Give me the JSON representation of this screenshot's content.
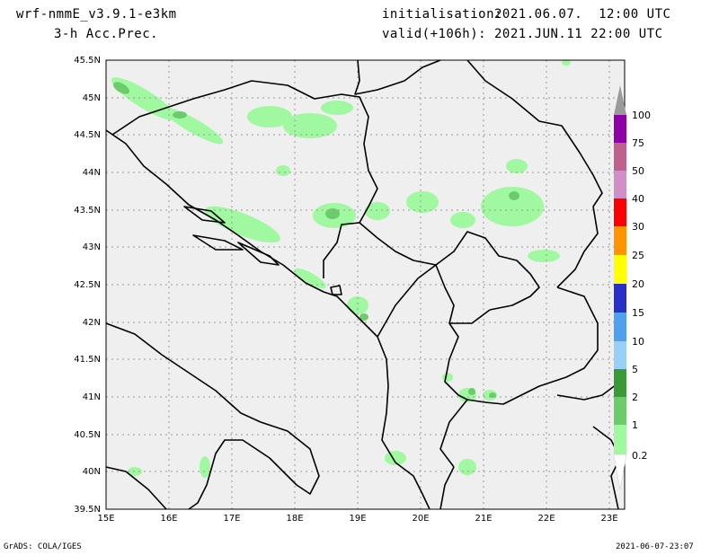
{
  "header": {
    "model": "wrf-nmmE_v3.9.1-e3km",
    "field": "3-h Acc.Prec.",
    "init_label": "initialisation:",
    "init_value": "2021.06.07.  12:00 UTC",
    "valid_label": "valid(+106h):",
    "valid_value": "2021.JUN.11 22:00 UTC"
  },
  "map": {
    "lat_labels": [
      "45.5N",
      "45N",
      "44.5N",
      "44N",
      "43.5N",
      "43N",
      "42.5N",
      "42N",
      "41.5N",
      "41N",
      "40.5N",
      "40N",
      "39.5N"
    ],
    "lon_labels": [
      "15E",
      "16E",
      "17E",
      "18E",
      "19E",
      "20E",
      "21E",
      "22E",
      "23E"
    ],
    "colors": {
      "land": "#efefef",
      "border": "#000000",
      "grid": "#9a9a9a"
    }
  },
  "colorbar": {
    "labels": [
      "100",
      "75",
      "50",
      "40",
      "30",
      "25",
      "20",
      "15",
      "10",
      "5",
      "2",
      "1",
      "0.2"
    ],
    "colors": [
      "#9b9b9b",
      "#9000a8",
      "#c0608c",
      "#d08fc8",
      "#ff0000",
      "#ff9400",
      "#ffff00",
      "#2830c8",
      "#50a0f0",
      "#98d0f8",
      "#3a9a3a",
      "#6ccc6c",
      "#a0f8a0",
      "#ffffff"
    ]
  },
  "footer": {
    "left": "GrADS: COLA/IGES",
    "right": "2021-06-07-23:07"
  }
}
